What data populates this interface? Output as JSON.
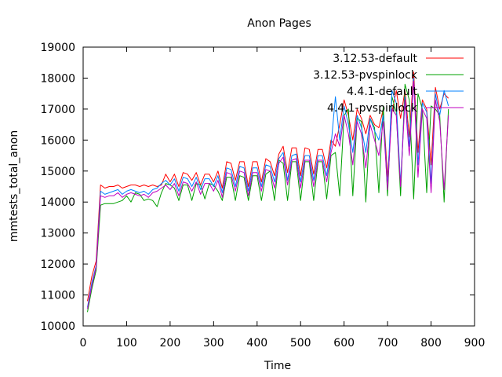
{
  "chart_data": {
    "type": "line",
    "title": "Anon Pages",
    "xlabel": "Time",
    "ylabel": "mmtests_total_anon",
    "xlim": [
      0,
      900
    ],
    "ylim": [
      10000,
      19000
    ],
    "xticks": [
      0,
      100,
      200,
      300,
      400,
      500,
      600,
      700,
      800,
      900
    ],
    "yticks": [
      10000,
      11000,
      12000,
      13000,
      14000,
      15000,
      16000,
      17000,
      18000,
      19000
    ],
    "xtick_labels": [
      "0",
      "100",
      "200",
      "300",
      "400",
      "500",
      "600",
      "700",
      "800",
      "900"
    ],
    "ytick_labels": [
      "10000",
      "11000",
      "12000",
      "13000",
      "14000",
      "15000",
      "16000",
      "17000",
      "18000",
      "19000"
    ],
    "grid": false,
    "legend_position": "top-right",
    "series": [
      {
        "name": "3.12.53-default",
        "color": "#ff0000",
        "x": [
          10,
          20,
          30,
          40,
          50,
          60,
          70,
          80,
          90,
          100,
          110,
          120,
          130,
          140,
          150,
          160,
          170,
          180,
          190,
          200,
          210,
          220,
          230,
          240,
          250,
          260,
          270,
          280,
          290,
          300,
          310,
          320,
          330,
          340,
          350,
          360,
          370,
          380,
          390,
          400,
          410,
          420,
          430,
          440,
          450,
          460,
          470,
          480,
          490,
          500,
          510,
          520,
          530,
          540,
          550,
          560,
          570,
          580,
          590,
          600,
          610,
          620,
          630,
          640,
          650,
          660,
          670,
          680,
          690,
          700,
          710,
          720,
          730,
          740,
          750,
          760,
          770,
          780,
          790,
          800,
          810,
          820,
          830,
          840
        ],
        "y": [
          10800,
          11600,
          12100,
          14550,
          14450,
          14500,
          14500,
          14550,
          14450,
          14500,
          14550,
          14550,
          14500,
          14550,
          14500,
          14550,
          14500,
          14550,
          14900,
          14650,
          14900,
          14500,
          14950,
          14900,
          14700,
          14950,
          14550,
          14900,
          14900,
          14650,
          15000,
          14450,
          15300,
          15250,
          14700,
          15300,
          15300,
          14500,
          15300,
          15300,
          14650,
          15400,
          15300,
          14850,
          15550,
          15800,
          14950,
          15750,
          15750,
          14850,
          15750,
          15700,
          14900,
          15700,
          15700,
          15100,
          16000,
          15800,
          16500,
          17300,
          16800,
          16000,
          17000,
          16700,
          16200,
          16800,
          16500,
          16400,
          17000,
          14800,
          16900,
          17600,
          16700,
          17600,
          16100,
          18200,
          15600,
          17300,
          17000,
          15200,
          17700,
          17000,
          17500,
          17350
        ]
      },
      {
        "name": "3.12.53-pvspinlock",
        "color": "#00a000",
        "x": [
          10,
          20,
          30,
          40,
          50,
          60,
          70,
          80,
          90,
          100,
          110,
          120,
          130,
          140,
          150,
          160,
          170,
          180,
          190,
          200,
          210,
          220,
          230,
          240,
          250,
          260,
          270,
          280,
          290,
          300,
          310,
          320,
          330,
          340,
          350,
          360,
          370,
          380,
          390,
          400,
          410,
          420,
          430,
          440,
          450,
          460,
          470,
          480,
          490,
          500,
          510,
          520,
          530,
          540,
          550,
          560,
          570,
          580,
          590,
          600,
          610,
          620,
          630,
          640,
          650,
          660,
          670,
          680,
          690,
          700,
          710,
          720,
          730,
          740,
          750,
          760,
          770,
          780,
          790,
          800,
          810,
          820,
          830,
          840
        ],
        "y": [
          10450,
          11200,
          11800,
          13900,
          13950,
          13950,
          13950,
          14000,
          14050,
          14200,
          14000,
          14300,
          14250,
          14050,
          14100,
          14050,
          13850,
          14300,
          14600,
          14550,
          14450,
          14050,
          14550,
          14550,
          14050,
          14600,
          14550,
          14100,
          14600,
          14550,
          14350,
          14050,
          14800,
          14800,
          14050,
          14850,
          14800,
          14050,
          14850,
          14850,
          14050,
          14900,
          15000,
          14050,
          15350,
          15250,
          14050,
          15300,
          15300,
          14050,
          15300,
          15300,
          14050,
          15300,
          15300,
          14100,
          15500,
          15600,
          14200,
          16800,
          17000,
          14200,
          16700,
          16600,
          14000,
          16700,
          16400,
          14300,
          17100,
          14200,
          17400,
          16900,
          14200,
          17800,
          17300,
          14100,
          17500,
          17000,
          14300,
          17100,
          17000,
          16800,
          14000,
          17000
        ]
      },
      {
        "name": "4.4.1-default",
        "color": "#0080ff",
        "x": [
          10,
          20,
          30,
          40,
          50,
          60,
          70,
          80,
          90,
          100,
          110,
          120,
          130,
          140,
          150,
          160,
          170,
          180,
          190,
          200,
          210,
          220,
          230,
          240,
          250,
          260,
          270,
          280,
          290,
          300,
          310,
          320,
          330,
          340,
          350,
          360,
          370,
          380,
          390,
          400,
          410,
          420,
          430,
          440,
          450,
          460,
          470,
          480,
          490,
          500,
          510,
          520,
          530,
          540,
          550,
          560,
          570,
          580,
          590,
          600,
          610,
          620,
          630,
          640,
          650,
          660,
          670,
          680,
          690,
          700,
          710,
          720,
          730,
          740,
          750,
          760,
          770,
          780,
          790,
          800,
          810,
          820,
          830,
          840
        ],
        "y": [
          10600,
          11400,
          11950,
          14350,
          14250,
          14300,
          14350,
          14400,
          14250,
          14350,
          14400,
          14350,
          14300,
          14350,
          14250,
          14400,
          14450,
          14600,
          14700,
          14550,
          14750,
          14350,
          14800,
          14750,
          14500,
          14800,
          14400,
          14750,
          14750,
          14500,
          14850,
          14300,
          15100,
          15050,
          14500,
          15150,
          15100,
          14350,
          15100,
          15100,
          14500,
          15200,
          15150,
          14650,
          15400,
          15600,
          14700,
          15500,
          15550,
          14650,
          15500,
          15500,
          14700,
          15500,
          15500,
          14850,
          15800,
          17400,
          16000,
          17100,
          16500,
          15600,
          16800,
          16400,
          15600,
          16700,
          16300,
          16000,
          16800,
          14500,
          17600,
          17200,
          14600,
          17400,
          15800,
          18000,
          15200,
          17200,
          16900,
          14600,
          17500,
          16800,
          17600,
          17100
        ]
      },
      {
        "name": "4.4.1-pvspinlock",
        "color": "#c000c0",
        "x": [
          10,
          20,
          30,
          40,
          50,
          60,
          70,
          80,
          90,
          100,
          110,
          120,
          130,
          140,
          150,
          160,
          170,
          180,
          190,
          200,
          210,
          220,
          230,
          240,
          250,
          260,
          270,
          280,
          290,
          300,
          310,
          320,
          330,
          340,
          350,
          360,
          370,
          380,
          390,
          400,
          410,
          420,
          430,
          440,
          450,
          460,
          470,
          480,
          490,
          500,
          510,
          520,
          530,
          540,
          550,
          560,
          570,
          580,
          590,
          600,
          610,
          620,
          630,
          640,
          650,
          660,
          670,
          680,
          690,
          700,
          710,
          720,
          730,
          740,
          750,
          760,
          770,
          780,
          790,
          800,
          810,
          820,
          830,
          840
        ],
        "y": [
          10550,
          11300,
          11900,
          14200,
          14150,
          14200,
          14200,
          14300,
          14150,
          14250,
          14300,
          14250,
          14200,
          14250,
          14150,
          14300,
          14350,
          14450,
          14550,
          14400,
          14600,
          14200,
          14650,
          14600,
          14350,
          14650,
          14250,
          14600,
          14600,
          14350,
          14700,
          14150,
          14950,
          14900,
          14350,
          15000,
          14950,
          14200,
          14950,
          14950,
          14350,
          15050,
          15000,
          14450,
          15250,
          15450,
          14550,
          15350,
          15400,
          14450,
          15350,
          15350,
          14500,
          15350,
          15350,
          14650,
          15600,
          16200,
          15800,
          16800,
          16200,
          15200,
          16600,
          16200,
          15100,
          16500,
          16000,
          15500,
          16600,
          14400,
          17000,
          16800,
          14500,
          17300,
          15500,
          17900,
          14800,
          17000,
          16700,
          14300,
          17300,
          16600,
          14400,
          16800
        ]
      }
    ]
  }
}
